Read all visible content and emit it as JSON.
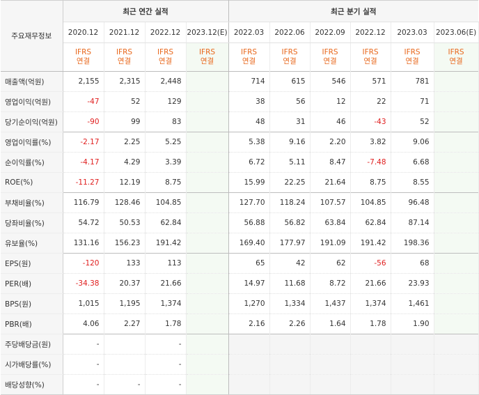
{
  "header": {
    "stub_label": "주요재무정보",
    "annual_group": "최근 연간 실적",
    "quarter_group": "최근 분기 실적",
    "annual_periods": [
      "2020.12",
      "2021.12",
      "2022.12",
      "2023.12(E)"
    ],
    "quarter_periods": [
      "2022.03",
      "2022.06",
      "2022.09",
      "2022.12",
      "2023.03",
      "2023.06(E)"
    ],
    "ifrs_top": "IFRS",
    "ifrs_bottom": "연결"
  },
  "rows": [
    {
      "label": "매출액(억원)",
      "annual": [
        "2,155",
        "2,315",
        "2,448",
        ""
      ],
      "quarter": [
        "714",
        "615",
        "546",
        "571",
        "781",
        ""
      ]
    },
    {
      "label": "영업이익(억원)",
      "annual": [
        "-47",
        "52",
        "129",
        ""
      ],
      "quarter": [
        "38",
        "56",
        "12",
        "22",
        "71",
        ""
      ]
    },
    {
      "label": "당기순이익(억원)",
      "annual": [
        "-90",
        "99",
        "83",
        ""
      ],
      "quarter": [
        "48",
        "31",
        "46",
        "-43",
        "52",
        ""
      ]
    },
    {
      "label": "영업이익률(%)",
      "annual": [
        "-2.17",
        "2.25",
        "5.25",
        ""
      ],
      "quarter": [
        "5.38",
        "9.16",
        "2.20",
        "3.82",
        "9.06",
        ""
      ]
    },
    {
      "label": "순이익률(%)",
      "annual": [
        "-4.17",
        "4.29",
        "3.39",
        ""
      ],
      "quarter": [
        "6.72",
        "5.11",
        "8.47",
        "-7.48",
        "6.68",
        ""
      ]
    },
    {
      "label": "ROE(%)",
      "annual": [
        "-11.27",
        "12.19",
        "8.75",
        ""
      ],
      "quarter": [
        "15.99",
        "22.25",
        "21.64",
        "8.75",
        "8.55",
        ""
      ]
    },
    {
      "label": "부채비율(%)",
      "annual": [
        "116.79",
        "128.46",
        "104.85",
        ""
      ],
      "quarter": [
        "127.70",
        "118.24",
        "107.57",
        "104.85",
        "96.48",
        ""
      ]
    },
    {
      "label": "당좌비율(%)",
      "annual": [
        "54.72",
        "50.53",
        "62.84",
        ""
      ],
      "quarter": [
        "56.88",
        "56.82",
        "63.84",
        "62.84",
        "87.14",
        ""
      ]
    },
    {
      "label": "유보율(%)",
      "annual": [
        "131.16",
        "156.23",
        "191.42",
        ""
      ],
      "quarter": [
        "169.40",
        "177.97",
        "191.09",
        "191.42",
        "198.36",
        ""
      ]
    },
    {
      "label": "EPS(원)",
      "annual": [
        "-120",
        "133",
        "113",
        ""
      ],
      "quarter": [
        "65",
        "42",
        "62",
        "-56",
        "68",
        ""
      ]
    },
    {
      "label": "PER(배)",
      "annual": [
        "-34.38",
        "20.37",
        "21.66",
        ""
      ],
      "quarter": [
        "14.97",
        "11.68",
        "8.72",
        "21.66",
        "23.93",
        ""
      ]
    },
    {
      "label": "BPS(원)",
      "annual": [
        "1,015",
        "1,195",
        "1,374",
        ""
      ],
      "quarter": [
        "1,270",
        "1,334",
        "1,437",
        "1,374",
        "1,461",
        ""
      ]
    },
    {
      "label": "PBR(배)",
      "annual": [
        "4.06",
        "2.27",
        "1.78",
        ""
      ],
      "quarter": [
        "2.16",
        "2.26",
        "1.64",
        "1.78",
        "1.90",
        ""
      ]
    },
    {
      "label": "주당배당금(원)",
      "annual": [
        "-",
        "",
        "-",
        ""
      ],
      "quarter": [
        "",
        "",
        "",
        "",
        "",
        ""
      ]
    },
    {
      "label": "시가배당률(%)",
      "annual": [
        "-",
        "",
        "-",
        ""
      ],
      "quarter": [
        "",
        "",
        "",
        "",
        "",
        ""
      ]
    },
    {
      "label": "배당성향(%)",
      "annual": [
        "-",
        "-",
        "-",
        ""
      ],
      "quarter": [
        "",
        "",
        "",
        "",
        "",
        ""
      ]
    }
  ],
  "colors": {
    "negative": "#e01e1e",
    "ifrs": "#e8671b",
    "estimate_bg": "#f4faf3"
  }
}
